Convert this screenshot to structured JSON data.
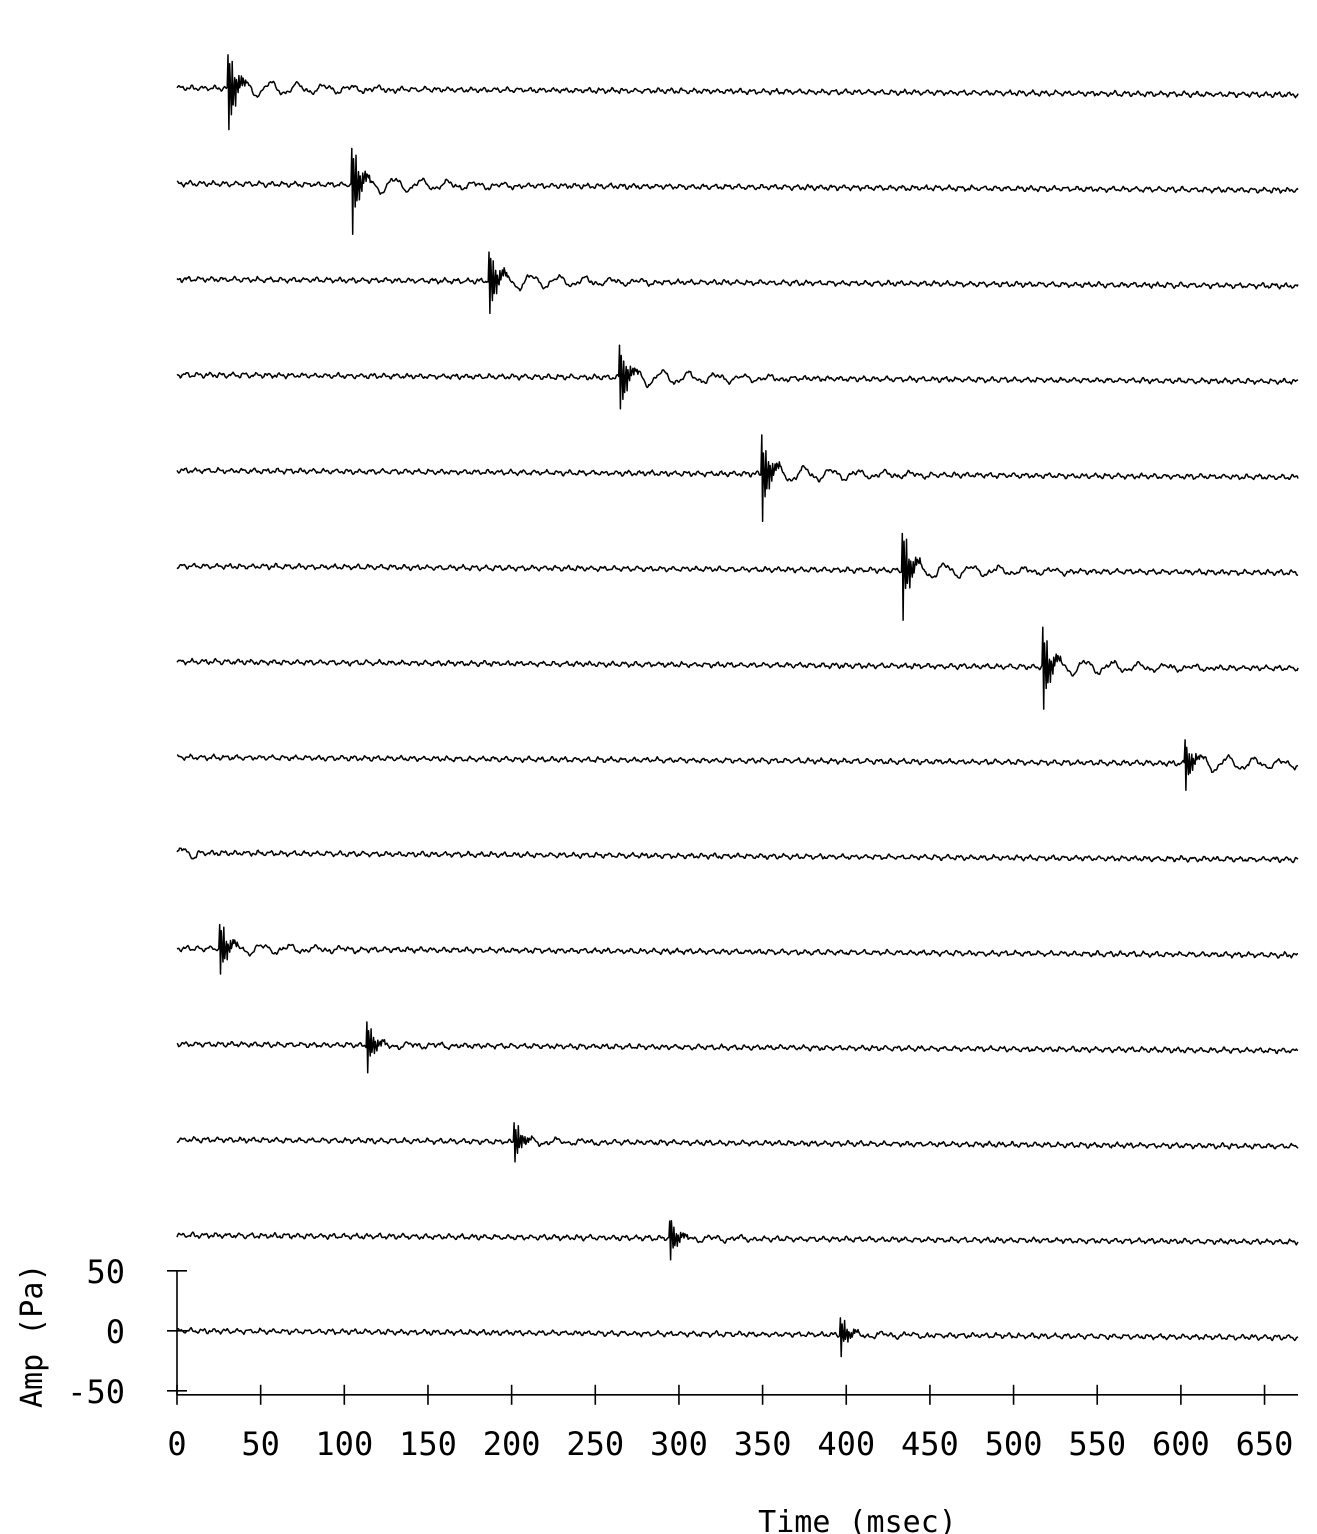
{
  "chart_data": {
    "type": "line",
    "xlabel": "Time (msec)",
    "ylabel": "Amp (Pa)",
    "xlim": [
      0,
      670
    ],
    "x_ticks": [
      "0",
      "50",
      "100",
      "150",
      "200",
      "250",
      "300",
      "350",
      "400",
      "450",
      "500",
      "550",
      "600",
      "650"
    ],
    "y_ticks": [
      "50",
      "0",
      "-50"
    ],
    "ylim": [
      -50,
      50
    ],
    "grid": false,
    "legend": "none",
    "series": [
      {
        "onset_ms": 30,
        "peak_pa": 60,
        "tail": "strong"
      },
      {
        "onset_ms": 104,
        "peak_pa": 62,
        "tail": "strong"
      },
      {
        "onset_ms": 186,
        "peak_pa": 50,
        "tail": "strong"
      },
      {
        "onset_ms": 264,
        "peak_pa": 48,
        "tail": "strong"
      },
      {
        "onset_ms": 349,
        "peak_pa": 58,
        "tail": "strong"
      },
      {
        "onset_ms": 433,
        "peak_pa": 60,
        "tail": "strong"
      },
      {
        "onset_ms": 517,
        "peak_pa": 55,
        "tail": "strong"
      },
      {
        "onset_ms": 602,
        "peak_pa": 32,
        "tail": "strong"
      },
      {
        "onset_ms": null,
        "peak_pa": 0,
        "tail": "none"
      },
      {
        "onset_ms": 25,
        "peak_pa": 40,
        "tail": "medium"
      },
      {
        "onset_ms": 113,
        "peak_pa": 34,
        "tail": "weak"
      },
      {
        "onset_ms": 201,
        "peak_pa": 30,
        "tail": "weak"
      },
      {
        "onset_ms": 294,
        "peak_pa": 30,
        "tail": "weak"
      },
      {
        "onset_ms": 396,
        "peak_pa": 28,
        "tail": "weak"
      }
    ]
  }
}
